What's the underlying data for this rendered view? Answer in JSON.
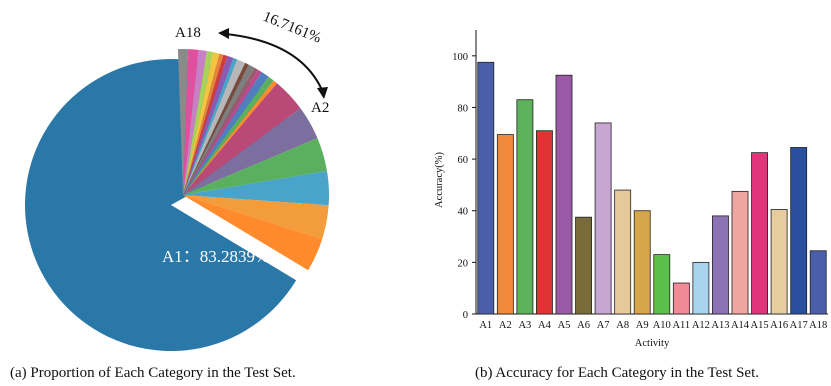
{
  "chart_data": [
    {
      "type": "pie",
      "caption": "(a) Proportion of Each Category in the Test Set.",
      "colors": {
        "A1": "#2a78a8",
        "others": [
          "#e24f9e",
          "#c97fc4",
          "#a8d35b",
          "#f3c43e",
          "#e8833a",
          "#d13b3b",
          "#8b5ab1",
          "#4aa3c8",
          "#b7b7b7",
          "#7a4a3a",
          "#7e7e7e",
          "#9a5a6b",
          "#bd4a8c",
          "#4f7fbf",
          "#5bb05f",
          "#ff8b2c"
        ]
      },
      "slices": [
        {
          "label": "A1",
          "value": 83.2839
        },
        {
          "label": "others",
          "value": 16.7161
        }
      ],
      "annotations": {
        "a1_label": "A1：83.2839%",
        "arc_label": "16.7161%",
        "start_label": "A18",
        "end_label": "A2"
      }
    },
    {
      "type": "bar",
      "caption": "(b) Accuracy for Each Category in the Test Set.",
      "xlabel": "Activity",
      "ylabel": "Accuracy(%)",
      "ylim": [
        0,
        110
      ],
      "yticks": [
        0,
        20,
        40,
        60,
        80,
        100
      ],
      "categories": [
        "A1",
        "A2",
        "A3",
        "A4",
        "A5",
        "A6",
        "A7",
        "A8",
        "A9",
        "A10",
        "A11",
        "A12",
        "A13",
        "A14",
        "A15",
        "A16",
        "A17",
        "A18"
      ],
      "values": [
        97.5,
        69.5,
        83,
        71,
        92.5,
        37.5,
        74,
        48,
        40,
        23,
        12,
        20,
        38,
        47.5,
        62.5,
        40.5,
        64.5,
        24.5
      ],
      "colors": [
        "#4a5fa8",
        "#f08a3a",
        "#5cb35c",
        "#e03434",
        "#9b5aa6",
        "#7a6b3a",
        "#c7a6d4",
        "#e6c99a",
        "#d6a64a",
        "#5cbf4a",
        "#f08a94",
        "#a8d4ee",
        "#8b73b5",
        "#f0a6a0",
        "#e0357a",
        "#e6cda0",
        "#2b4f9e",
        "#4a5fa8"
      ]
    }
  ]
}
